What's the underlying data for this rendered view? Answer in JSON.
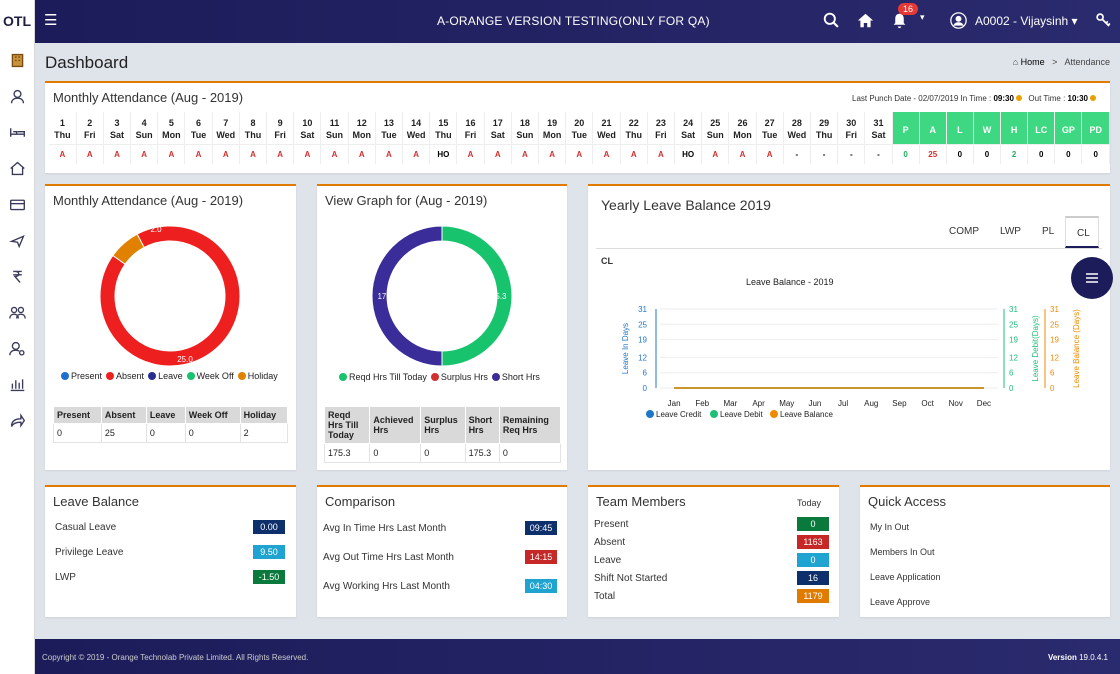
{
  "sidebar": {
    "logo": "OTL"
  },
  "topbar": {
    "app_title": "A-ORANGE VERSION TESTING(ONLY FOR QA)",
    "notification_count": "16",
    "user": "A0002 - Vijaysinh ▾"
  },
  "page": {
    "title": "Dashboard",
    "breadcrumb_home": "Home",
    "breadcrumb_sep": ">",
    "breadcrumb_current": "Attendance"
  },
  "attendance_panel": {
    "title": "Monthly Attendance (Aug - 2019)",
    "last_punch_label": "Last Punch Date - 02/07/2019 In Time :",
    "in_time": "09:30",
    "out_time_label": "Out Time :",
    "out_time": "10:30",
    "days": [
      {
        "n": "1",
        "d": "Thu",
        "s": "A"
      },
      {
        "n": "2",
        "d": "Fri",
        "s": "A"
      },
      {
        "n": "3",
        "d": "Sat",
        "s": "A"
      },
      {
        "n": "4",
        "d": "Sun",
        "s": "A"
      },
      {
        "n": "5",
        "d": "Mon",
        "s": "A"
      },
      {
        "n": "6",
        "d": "Tue",
        "s": "A"
      },
      {
        "n": "7",
        "d": "Wed",
        "s": "A"
      },
      {
        "n": "8",
        "d": "Thu",
        "s": "A"
      },
      {
        "n": "9",
        "d": "Fri",
        "s": "A"
      },
      {
        "n": "10",
        "d": "Sat",
        "s": "A"
      },
      {
        "n": "11",
        "d": "Sun",
        "s": "A"
      },
      {
        "n": "12",
        "d": "Mon",
        "s": "A"
      },
      {
        "n": "13",
        "d": "Tue",
        "s": "A"
      },
      {
        "n": "14",
        "d": "Wed",
        "s": "A"
      },
      {
        "n": "15",
        "d": "Thu",
        "s": "HO"
      },
      {
        "n": "16",
        "d": "Fri",
        "s": "A"
      },
      {
        "n": "17",
        "d": "Sat",
        "s": "A"
      },
      {
        "n": "18",
        "d": "Sun",
        "s": "A"
      },
      {
        "n": "19",
        "d": "Mon",
        "s": "A"
      },
      {
        "n": "20",
        "d": "Tue",
        "s": "A"
      },
      {
        "n": "21",
        "d": "Wed",
        "s": "A"
      },
      {
        "n": "22",
        "d": "Thu",
        "s": "A"
      },
      {
        "n": "23",
        "d": "Fri",
        "s": "A"
      },
      {
        "n": "24",
        "d": "Sat",
        "s": "HO"
      },
      {
        "n": "25",
        "d": "Sun",
        "s": "A"
      },
      {
        "n": "26",
        "d": "Mon",
        "s": "A"
      },
      {
        "n": "27",
        "d": "Tue",
        "s": "A"
      },
      {
        "n": "28",
        "d": "Wed",
        "s": "-"
      },
      {
        "n": "29",
        "d": "Thu",
        "s": "-"
      },
      {
        "n": "30",
        "d": "Fri",
        "s": "-"
      },
      {
        "n": "31",
        "d": "Sat",
        "s": "-"
      }
    ],
    "summary": [
      {
        "k": "P",
        "v": "0"
      },
      {
        "k": "A",
        "v": "25"
      },
      {
        "k": "L",
        "v": "0"
      },
      {
        "k": "W",
        "v": "0"
      },
      {
        "k": "H",
        "v": "2"
      },
      {
        "k": "LC",
        "v": "0"
      },
      {
        "k": "GP",
        "v": "0"
      },
      {
        "k": "PD",
        "v": "0"
      }
    ]
  },
  "monthly_pie": {
    "title": "Monthly Attendance (Aug - 2019)",
    "label_absent": "25.0",
    "label_holiday": "2.0",
    "legend": [
      "Present",
      "Absent",
      "Leave",
      "Week Off",
      "Holiday"
    ],
    "table_headers": [
      "Present",
      "Absent",
      "Leave",
      "Week Off",
      "Holiday"
    ],
    "table_values": [
      "0",
      "25",
      "0",
      "0",
      "2"
    ]
  },
  "graph_pie": {
    "title": "View Graph for (Aug - 2019)",
    "label_left": "175.3",
    "label_right": "175.3",
    "legend": [
      "Reqd Hrs Till Today",
      "Surplus Hrs",
      "Short Hrs"
    ],
    "table_headers": [
      "Reqd Hrs Till Today",
      "Achieved Hrs",
      "Surplus Hrs",
      "Short Hrs",
      "Remaining Req Hrs"
    ],
    "table_values": [
      "175.3",
      "0",
      "0",
      "175.3",
      "0"
    ]
  },
  "yearly": {
    "title": "Yearly Leave Balance 2019",
    "tabs": [
      "COMP",
      "LWP",
      "PL",
      "CL"
    ],
    "active_tab": "CL",
    "subtitle": "CL",
    "chart_title": "Leave Balance - 2019"
  },
  "chart_data": {
    "type": "line",
    "title": "Leave Balance - 2019",
    "categories": [
      "Jan",
      "Feb",
      "Mar",
      "Apr",
      "May",
      "Jun",
      "Jul",
      "Aug",
      "Sep",
      "Oct",
      "Nov",
      "Dec"
    ],
    "ylabel": "Leave In Days",
    "ylabel_right1": "Leave Debit(Days)",
    "ylabel_right2": "Leave Balance (Days)",
    "yticks": [
      "0",
      "6",
      "12",
      "19",
      "25",
      "31"
    ],
    "ylim": [
      0,
      31
    ],
    "series": [
      {
        "name": "Leave Credit",
        "color": "#1f77c9",
        "values": [
          0,
          0,
          0,
          0,
          0,
          0,
          0,
          0,
          0,
          0,
          0,
          0
        ]
      },
      {
        "name": "Leave Debit",
        "color": "#1fbf7a",
        "values": [
          0,
          0,
          0,
          0,
          0,
          0,
          0,
          0,
          0,
          0,
          0,
          0
        ]
      },
      {
        "name": "Leave Balance",
        "color": "#f08a00",
        "values": [
          0,
          0,
          0,
          0,
          0,
          0,
          0,
          0,
          0,
          0,
          0,
          0
        ]
      }
    ]
  },
  "leave_balance": {
    "title": "Leave Balance",
    "items": [
      {
        "label": "Casual Leave",
        "value": "0.00",
        "color": "#0d2f6b"
      },
      {
        "label": "Privilege Leave",
        "value": "9.50",
        "color": "#1fa3d1"
      },
      {
        "label": "LWP",
        "value": "-1.50",
        "color": "#0a7a3c"
      }
    ]
  },
  "comparison": {
    "title": "Comparison",
    "items": [
      {
        "label": "Avg In Time Hrs Last Month",
        "value": "09:45",
        "color": "#0d2f6b"
      },
      {
        "label": "Avg Out Time Hrs Last Month",
        "value": "14:15",
        "color": "#c62828"
      },
      {
        "label": "Avg Working Hrs Last Month",
        "value": "04:30",
        "color": "#1fa3d1"
      }
    ]
  },
  "team": {
    "title": "Team Members",
    "date_label": "Today",
    "items": [
      {
        "label": "Present",
        "value": "0",
        "color": "#0a7a3c"
      },
      {
        "label": "Absent",
        "value": "1163",
        "color": "#c62828"
      },
      {
        "label": "Leave",
        "value": "0",
        "color": "#1fa3d1"
      },
      {
        "label": "Shift Not Started",
        "value": "16",
        "color": "#0d2f6b"
      },
      {
        "label": "Total",
        "value": "1179",
        "color": "#e07b00"
      }
    ]
  },
  "quick_access": {
    "title": "Quick Access",
    "links": [
      "My In Out",
      "Members In Out",
      "Leave Application",
      "Leave Approve"
    ]
  },
  "footer": {
    "copyright": "Copyright © 2019 - Orange Technolab Private Limited. All Rights Reserved.",
    "version_label": "Version",
    "version": "19.0.4.1"
  },
  "colors": {
    "present": "#1f6fd1",
    "absent": "#ee1f1f",
    "leave": "#2a2d8f",
    "weekoff": "#17c46d",
    "holiday": "#e08100",
    "reqd": "#17c46d",
    "surplus": "#d32f2f",
    "short": "#3a2d9a"
  }
}
